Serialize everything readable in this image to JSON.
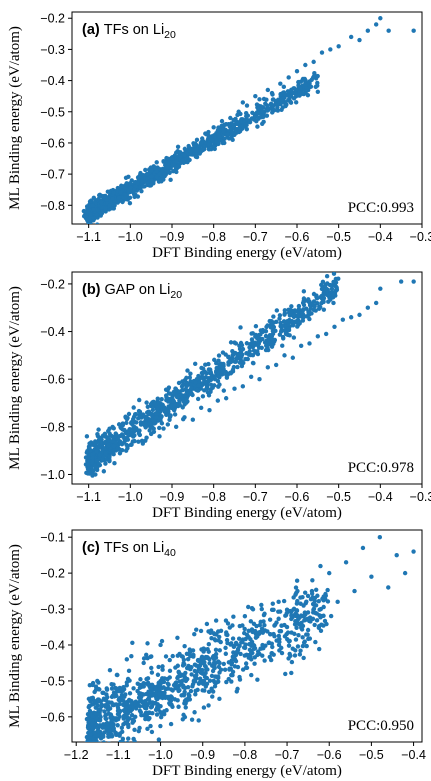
{
  "figure": {
    "point_color": "#1f77b4"
  },
  "chart_data": [
    {
      "type": "scatter",
      "tag": "(a)",
      "method": "TFs on Li",
      "subscript": "20",
      "xlabel": "DFT Binding energy (eV/atom)",
      "ylabel": "ML Binding energy (eV/atom)",
      "annotation": "PCC:0.993",
      "xlim": [
        -1.14,
        -0.3
      ],
      "ylim": [
        -0.86,
        -0.18
      ],
      "xticks": [
        -1.1,
        -1.0,
        -0.9,
        -0.8,
        -0.7,
        -0.6,
        -0.5,
        -0.4,
        -0.3
      ],
      "xtick_labels": [
        "−1.1",
        "−1.0",
        "−0.9",
        "−0.8",
        "−0.7",
        "−0.6",
        "−0.5",
        "−0.4",
        "−0.3"
      ],
      "yticks": [
        -0.8,
        -0.7,
        -0.6,
        -0.5,
        -0.4,
        -0.3,
        -0.2
      ],
      "ytick_labels": [
        "−0.8",
        "−0.7",
        "−0.6",
        "−0.5",
        "−0.4",
        "−0.3",
        "−0.2"
      ],
      "grid": false,
      "points": [
        [
          -1.1,
          -0.82
        ],
        [
          -1.09,
          -0.8
        ],
        [
          -1.08,
          -0.83
        ],
        [
          -1.07,
          -0.79
        ],
        [
          -1.06,
          -0.81
        ],
        [
          -1.06,
          -0.77
        ],
        [
          -1.05,
          -0.8
        ],
        [
          -1.04,
          -0.76
        ],
        [
          -1.03,
          -0.79
        ],
        [
          -1.02,
          -0.74
        ],
        [
          -1.01,
          -0.77
        ],
        [
          -1.0,
          -0.73
        ],
        [
          -0.99,
          -0.75
        ],
        [
          -0.98,
          -0.72
        ],
        [
          -0.97,
          -0.74
        ],
        [
          -0.96,
          -0.7
        ],
        [
          -0.95,
          -0.72
        ],
        [
          -0.94,
          -0.68
        ],
        [
          -0.93,
          -0.7
        ],
        [
          -0.92,
          -0.66
        ],
        [
          -0.91,
          -0.68
        ],
        [
          -0.9,
          -0.65
        ],
        [
          -0.89,
          -0.66
        ],
        [
          -0.88,
          -0.63
        ],
        [
          -0.87,
          -0.64
        ],
        [
          -0.86,
          -0.61
        ],
        [
          -0.85,
          -0.62
        ],
        [
          -0.84,
          -0.59
        ],
        [
          -0.83,
          -0.6
        ],
        [
          -0.82,
          -0.57
        ],
        [
          -0.81,
          -0.58
        ],
        [
          -0.8,
          -0.55
        ],
        [
          -0.79,
          -0.56
        ],
        [
          -0.78,
          -0.53
        ],
        [
          -0.77,
          -0.54
        ],
        [
          -0.76,
          -0.52
        ],
        [
          -0.74,
          -0.5
        ],
        [
          -0.73,
          -0.47
        ],
        [
          -0.72,
          -0.48
        ],
        [
          -0.7,
          -0.45
        ],
        [
          -0.69,
          -0.46
        ],
        [
          -0.67,
          -0.43
        ],
        [
          -0.66,
          -0.44
        ],
        [
          -0.64,
          -0.41
        ],
        [
          -0.62,
          -0.39
        ],
        [
          -0.6,
          -0.37
        ],
        [
          -0.58,
          -0.35
        ],
        [
          -0.56,
          -0.34
        ],
        [
          -0.54,
          -0.31
        ],
        [
          -0.52,
          -0.3
        ],
        [
          -0.5,
          -0.29
        ],
        [
          -0.47,
          -0.26
        ],
        [
          -0.45,
          -0.27
        ],
        [
          -0.43,
          -0.24
        ],
        [
          -0.41,
          -0.22
        ],
        [
          -0.4,
          -0.2
        ],
        [
          -0.38,
          -0.24
        ],
        [
          -0.32,
          -0.24
        ]
      ],
      "cluster": {
        "count": 1050,
        "slope": 0.78,
        "intercept": 0.034,
        "noise": 0.016,
        "xmin": -1.1,
        "xmax": -0.55,
        "skew": 1.6
      }
    },
    {
      "type": "scatter",
      "tag": "(b)",
      "method": "GAP on Li",
      "subscript": "20",
      "xlabel": "DFT Binding energy (eV/atom)",
      "ylabel": "ML Binding energy (eV/atom)",
      "annotation": "PCC:0.978",
      "xlim": [
        -1.14,
        -0.3
      ],
      "ylim": [
        -1.04,
        -0.15
      ],
      "xticks": [
        -1.1,
        -1.0,
        -0.9,
        -0.8,
        -0.7,
        -0.6,
        -0.5,
        -0.4,
        -0.3
      ],
      "xtick_labels": [
        "−1.1",
        "−1.0",
        "−0.9",
        "−0.8",
        "−0.7",
        "−0.6",
        "−0.5",
        "−0.4",
        "−0.3"
      ],
      "yticks": [
        -1.0,
        -0.8,
        -0.6,
        -0.4,
        -0.2
      ],
      "ytick_labels": [
        "−1.0",
        "−0.8",
        "−0.6",
        "−0.4",
        "−0.2"
      ],
      "grid": false,
      "points": [
        [
          -1.1,
          -0.96
        ],
        [
          -1.09,
          -0.93
        ],
        [
          -1.08,
          -0.97
        ],
        [
          -1.06,
          -0.91
        ],
        [
          -1.05,
          -0.94
        ],
        [
          -1.03,
          -0.89
        ],
        [
          -1.01,
          -0.9
        ],
        [
          -0.99,
          -0.86
        ],
        [
          -0.97,
          -0.87
        ],
        [
          -0.95,
          -0.83
        ],
        [
          -0.93,
          -0.84
        ],
        [
          -0.91,
          -0.79
        ],
        [
          -0.89,
          -0.8
        ],
        [
          -0.87,
          -0.76
        ],
        [
          -0.85,
          -0.77
        ],
        [
          -0.83,
          -0.72
        ],
        [
          -0.81,
          -0.73
        ],
        [
          -0.79,
          -0.69
        ],
        [
          -0.77,
          -0.68
        ],
        [
          -0.75,
          -0.64
        ],
        [
          -0.73,
          -0.63
        ],
        [
          -0.71,
          -0.59
        ],
        [
          -0.69,
          -0.6
        ],
        [
          -0.67,
          -0.55
        ],
        [
          -0.65,
          -0.54
        ],
        [
          -0.63,
          -0.5
        ],
        [
          -0.61,
          -0.51
        ],
        [
          -0.59,
          -0.46
        ],
        [
          -0.57,
          -0.45
        ],
        [
          -0.55,
          -0.42
        ],
        [
          -0.53,
          -0.41
        ],
        [
          -0.51,
          -0.38
        ],
        [
          -0.49,
          -0.35
        ],
        [
          -0.47,
          -0.34
        ],
        [
          -0.45,
          -0.33
        ],
        [
          -0.43,
          -0.3
        ],
        [
          -0.41,
          -0.28
        ],
        [
          -0.4,
          -0.22
        ],
        [
          -0.35,
          -0.19
        ],
        [
          -0.32,
          -0.19
        ]
      ],
      "cluster": {
        "count": 1000,
        "slope": 1.22,
        "intercept": 0.4,
        "noise": 0.035,
        "xmin": -1.1,
        "xmax": -0.5,
        "skew": 1.6
      }
    },
    {
      "type": "scatter",
      "tag": "(c)",
      "method": "TFs on Li",
      "subscript": "40",
      "xlabel": "DFT Binding energy (eV/atom)",
      "ylabel": "ML Binding energy (eV/atom)",
      "annotation": "PCC:0.950",
      "xlim": [
        -1.21,
        -0.38
      ],
      "ylim": [
        -0.67,
        -0.08
      ],
      "xticks": [
        -1.2,
        -1.1,
        -1.0,
        -0.9,
        -0.8,
        -0.7,
        -0.6,
        -0.5,
        -0.4
      ],
      "xtick_labels": [
        "−1.2",
        "−1.1",
        "−1.0",
        "−0.9",
        "−0.8",
        "−0.7",
        "−0.6",
        "−0.5",
        "−0.4"
      ],
      "yticks": [
        -0.6,
        -0.5,
        -0.4,
        -0.3,
        -0.2,
        -0.1
      ],
      "ytick_labels": [
        "−0.6",
        "−0.5",
        "−0.4",
        "−0.3",
        "−0.2",
        "−0.1"
      ],
      "grid": false,
      "points": [
        [
          -1.17,
          -0.55
        ],
        [
          -1.16,
          -0.6
        ],
        [
          -1.15,
          -0.5
        ],
        [
          -1.13,
          -0.63
        ],
        [
          -1.12,
          -0.47
        ],
        [
          -1.1,
          -0.58
        ],
        [
          -1.08,
          -0.44
        ],
        [
          -1.06,
          -0.6
        ],
        [
          -1.04,
          -0.45
        ],
        [
          -1.02,
          -0.56
        ],
        [
          -1.0,
          -0.4
        ],
        [
          -0.98,
          -0.55
        ],
        [
          -0.96,
          -0.38
        ],
        [
          -0.94,
          -0.5
        ],
        [
          -0.92,
          -0.37
        ],
        [
          -0.9,
          -0.48
        ],
        [
          -0.88,
          -0.36
        ],
        [
          -0.86,
          -0.45
        ],
        [
          -0.84,
          -0.34
        ],
        [
          -0.82,
          -0.42
        ],
        [
          -0.8,
          -0.32
        ],
        [
          -0.78,
          -0.4
        ],
        [
          -0.76,
          -0.3
        ],
        [
          -0.74,
          -0.37
        ],
        [
          -0.72,
          -0.28
        ],
        [
          -0.7,
          -0.35
        ],
        [
          -0.68,
          -0.26
        ],
        [
          -0.66,
          -0.32
        ],
        [
          -0.64,
          -0.22
        ],
        [
          -0.62,
          -0.3
        ],
        [
          -0.6,
          -0.2
        ],
        [
          -0.58,
          -0.28
        ],
        [
          -0.56,
          -0.17
        ],
        [
          -0.54,
          -0.25
        ],
        [
          -0.52,
          -0.13
        ],
        [
          -0.5,
          -0.21
        ],
        [
          -0.48,
          -0.1
        ],
        [
          -0.46,
          -0.24
        ],
        [
          -0.44,
          -0.15
        ],
        [
          -0.42,
          -0.2
        ],
        [
          -0.4,
          -0.14
        ]
      ],
      "cluster": {
        "count": 1050,
        "slope": 0.6,
        "intercept": 0.07,
        "noise": 0.05,
        "xmin": -1.17,
        "xmax": -0.6,
        "skew": 1.5
      }
    }
  ]
}
